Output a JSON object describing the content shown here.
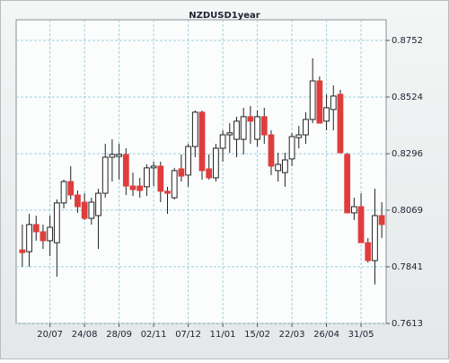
{
  "chart_data": {
    "type": "candlestick",
    "title": "NZDUSD1year",
    "categories": [
      null,
      null,
      null,
      null,
      "20/07",
      null,
      null,
      null,
      null,
      "24/08",
      null,
      null,
      null,
      null,
      "28/09",
      null,
      null,
      null,
      null,
      "02/11",
      null,
      null,
      null,
      null,
      "07/12",
      null,
      null,
      null,
      null,
      "11/01",
      null,
      null,
      null,
      null,
      "15/02",
      null,
      null,
      null,
      null,
      "22/03",
      null,
      null,
      null,
      null,
      "26/04",
      null,
      null,
      null,
      null,
      "31/05",
      null,
      null,
      null
    ],
    "open": [
      0.7909,
      0.7902,
      0.8011,
      0.7982,
      0.7946,
      0.7938,
      0.8098,
      0.8184,
      0.813,
      0.8101,
      0.8036,
      0.8047,
      0.8137,
      0.8282,
      0.8285,
      0.8293,
      0.8166,
      0.8166,
      0.8163,
      0.8239,
      0.8246,
      0.8145,
      0.8119,
      0.8235,
      0.821,
      0.8325,
      0.8463,
      0.8235,
      0.8199,
      0.8318,
      0.8372,
      0.8354,
      0.8354,
      0.8445,
      0.8354,
      0.8445,
      0.8372,
      0.8228,
      0.822,
      0.8275,
      0.8361,
      0.8372,
      0.8434,
      0.8589,
      0.8427,
      0.8474,
      0.8535,
      0.8293,
      0.8058,
      0.8083,
      0.7938,
      0.7866,
      0.8047
    ],
    "high": [
      0.8011,
      0.8054,
      0.8047,
      0.8011,
      0.8047,
      0.8112,
      0.8192,
      0.8246,
      0.8148,
      0.8137,
      0.8119,
      0.8155,
      0.8336,
      0.8354,
      0.8336,
      0.8318,
      0.822,
      0.8199,
      0.8253,
      0.8264,
      0.8264,
      0.8163,
      0.8239,
      0.8293,
      0.8336,
      0.847,
      0.847,
      0.8293,
      0.8336,
      0.839,
      0.8419,
      0.8445,
      0.8481,
      0.8488,
      0.847,
      0.8481,
      0.839,
      0.83,
      0.83,
      0.838,
      0.8408,
      0.8463,
      0.868,
      0.8607,
      0.8535,
      0.8571,
      0.8553,
      0.83,
      0.8119,
      0.8137,
      0.7957,
      0.8155,
      0.8101
    ],
    "low": [
      0.7841,
      0.7841,
      0.7946,
      0.7913,
      0.7884,
      0.7801,
      0.8076,
      0.8112,
      0.8058,
      0.8029,
      0.8011,
      0.7913,
      0.8119,
      0.8184,
      0.8192,
      0.813,
      0.8126,
      0.8119,
      0.8126,
      0.8166,
      0.8101,
      0.8054,
      0.8112,
      0.8184,
      0.8163,
      0.8282,
      0.8192,
      0.8192,
      0.8184,
      0.8264,
      0.83,
      0.8282,
      0.8293,
      0.8336,
      0.8325,
      0.8336,
      0.821,
      0.8184,
      0.8163,
      0.8246,
      0.8318,
      0.8336,
      0.8419,
      0.8419,
      0.839,
      0.839,
      0.83,
      0.8058,
      0.8029,
      0.7938,
      0.7858,
      0.777,
      0.7957
    ],
    "close": [
      0.7898,
      0.8011,
      0.7982,
      0.7946,
      0.8,
      0.8098,
      0.8184,
      0.813,
      0.8083,
      0.8036,
      0.8101,
      0.8137,
      0.8282,
      0.8293,
      0.8293,
      0.8166,
      0.8152,
      0.8148,
      0.8239,
      0.8246,
      0.8145,
      0.8137,
      0.8228,
      0.8206,
      0.8325,
      0.8463,
      0.8228,
      0.8199,
      0.8318,
      0.8372,
      0.838,
      0.8427,
      0.8445,
      0.8427,
      0.8445,
      0.8372,
      0.8246,
      0.8253,
      0.8271,
      0.8365,
      0.8372,
      0.8434,
      0.8589,
      0.8419,
      0.8481,
      0.8528,
      0.83,
      0.8058,
      0.8083,
      0.7938,
      0.7866,
      0.8047,
      0.8011
    ],
    "up_color": "#ffffff",
    "down_color": "#e03c3c",
    "ylim": [
      0.7613,
      0.8835
    ],
    "yticks": [
      0.7613,
      0.7841,
      0.8069,
      0.8296,
      0.8524,
      0.8752
    ],
    "grid": true
  }
}
